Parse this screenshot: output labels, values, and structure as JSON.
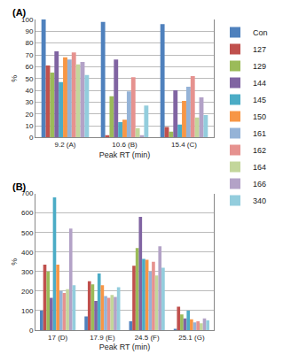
{
  "chart_data": [
    {
      "type": "bar",
      "title": "(A)",
      "x_label": "Peak RT (min)",
      "y_label": "%",
      "categories": [
        "9.2 (A)",
        "10.6 (B)",
        "15.4 (C)"
      ],
      "ylim": [
        0,
        100
      ],
      "yticks": [
        0,
        10,
        20,
        30,
        40,
        50,
        60,
        70,
        80,
        90,
        100
      ],
      "grid": true,
      "legend": "right",
      "series": [
        {
          "name": "Con",
          "color": "#4F81BD",
          "values": [
            100,
            98,
            96
          ]
        },
        {
          "name": "127",
          "color": "#C0504D",
          "values": [
            61,
            2,
            9
          ]
        },
        {
          "name": "129",
          "color": "#9BBB59",
          "values": [
            55,
            35,
            5
          ]
        },
        {
          "name": "144",
          "color": "#8064A2",
          "values": [
            73,
            66,
            40
          ]
        },
        {
          "name": "145",
          "color": "#4BACC6",
          "values": [
            47,
            13,
            11
          ]
        },
        {
          "name": "150",
          "color": "#F79646",
          "values": [
            68,
            15,
            31
          ]
        },
        {
          "name": "161",
          "color": "#95B3D7",
          "values": [
            66,
            39,
            43
          ]
        },
        {
          "name": "162",
          "color": "#E6928F",
          "values": [
            72,
            51,
            52
          ]
        },
        {
          "name": "164",
          "color": "#C3D69B",
          "values": [
            62,
            8,
            17
          ]
        },
        {
          "name": "166",
          "color": "#B3A2C7",
          "values": [
            64,
            2,
            34
          ]
        },
        {
          "name": "340",
          "color": "#93CDDD",
          "values": [
            53,
            27,
            19
          ]
        }
      ]
    },
    {
      "type": "bar",
      "title": "(B)",
      "x_label": "Peak RT (min)",
      "y_label": "%",
      "categories": [
        "17 (D)",
        "17.9 (E)",
        "24.5 (F)",
        "25.1 (G)"
      ],
      "ylim": [
        0,
        700
      ],
      "yticks": [
        0,
        100,
        200,
        300,
        400,
        500,
        600,
        700
      ],
      "grid": true,
      "series": [
        {
          "name": "Con",
          "color": "#4F81BD",
          "values": [
            100,
            70,
            45,
            5
          ]
        },
        {
          "name": "127",
          "color": "#C0504D",
          "values": [
            335,
            250,
            330,
            120
          ]
        },
        {
          "name": "129",
          "color": "#9BBB59",
          "values": [
            300,
            235,
            420,
            80
          ]
        },
        {
          "name": "144",
          "color": "#8064A2",
          "values": [
            165,
            150,
            580,
            60
          ]
        },
        {
          "name": "145",
          "color": "#4BACC6",
          "values": [
            680,
            290,
            365,
            100
          ]
        },
        {
          "name": "150",
          "color": "#F79646",
          "values": [
            335,
            230,
            360,
            55
          ]
        },
        {
          "name": "161",
          "color": "#95B3D7",
          "values": [
            200,
            175,
            300,
            40
          ]
        },
        {
          "name": "162",
          "color": "#E6928F",
          "values": [
            190,
            165,
            350,
            45
          ]
        },
        {
          "name": "164",
          "color": "#C3D69B",
          "values": [
            210,
            180,
            280,
            35
          ]
        },
        {
          "name": "166",
          "color": "#B3A2C7",
          "values": [
            520,
            170,
            430,
            60
          ]
        },
        {
          "name": "340",
          "color": "#93CDDD",
          "values": [
            230,
            220,
            320,
            50
          ]
        }
      ]
    }
  ]
}
